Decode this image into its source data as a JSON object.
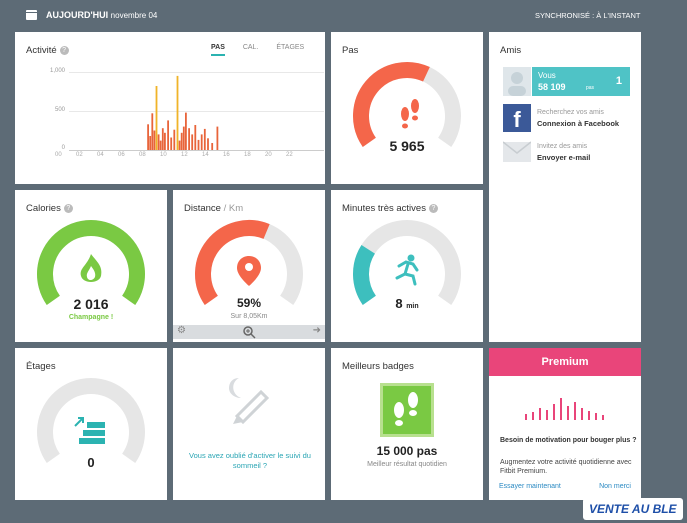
{
  "header": {
    "title": "AUJOURD'HUI",
    "date": "novembre 04",
    "sync": "SYNCHRONISÉ : À L'INSTANT"
  },
  "activity": {
    "title": "Activité",
    "tabs": [
      "PAS",
      "CAL.",
      "ÉTAGES"
    ],
    "active_tab": "PAS",
    "chart_data": {
      "type": "bar",
      "title": "",
      "ylim": [
        0,
        1000
      ],
      "yticks": [
        "1,000",
        "500",
        "0"
      ],
      "x_ticks": [
        "00",
        "02",
        "04",
        "06",
        "08",
        "10",
        "12",
        "14",
        "16",
        "18",
        "20",
        "22"
      ],
      "series": [
        {
          "values": [
            {
              "x": 8.4,
              "y": 330
            },
            {
              "x": 8.6,
              "y": 180
            },
            {
              "x": 8.8,
              "y": 470
            },
            {
              "x": 9.0,
              "y": 250
            },
            {
              "x": 9.2,
              "y": 820
            },
            {
              "x": 9.4,
              "y": 200
            },
            {
              "x": 9.6,
              "y": 120
            },
            {
              "x": 9.8,
              "y": 280
            },
            {
              "x": 10.0,
              "y": 220
            },
            {
              "x": 10.3,
              "y": 380
            },
            {
              "x": 10.6,
              "y": 160
            },
            {
              "x": 10.9,
              "y": 260
            },
            {
              "x": 11.2,
              "y": 950
            },
            {
              "x": 11.4,
              "y": 120
            },
            {
              "x": 11.6,
              "y": 220
            },
            {
              "x": 11.8,
              "y": 300
            },
            {
              "x": 12.0,
              "y": 480
            },
            {
              "x": 12.3,
              "y": 280
            },
            {
              "x": 12.6,
              "y": 200
            },
            {
              "x": 12.9,
              "y": 320
            },
            {
              "x": 13.2,
              "y": 130
            },
            {
              "x": 13.5,
              "y": 200
            },
            {
              "x": 13.8,
              "y": 270
            },
            {
              "x": 14.1,
              "y": 150
            },
            {
              "x": 14.5,
              "y": 90
            },
            {
              "x": 15.0,
              "y": 300
            }
          ]
        }
      ],
      "colors": {
        "orange": "#e8643a",
        "yellow": "#f0b429"
      }
    }
  },
  "pas": {
    "title": "Pas",
    "value": "5 965",
    "progress": 0.6,
    "color": "#f4664a"
  },
  "friends": {
    "title": "Amis",
    "me_label": "Vous",
    "me_value": "58 109",
    "me_sub": "pas",
    "rank": "1",
    "fb_line1": "Recherchez vos amis",
    "fb_line2": "Connexion à Facebook",
    "mail_line1": "Invitez des amis",
    "mail_line2": "Envoyer e-mail"
  },
  "calories": {
    "title": "Calories",
    "value": "2 016",
    "sub": "Champagne !",
    "progress": 1.0,
    "color": "#7ac943"
  },
  "distance": {
    "title": "Distance",
    "unit": " / Km",
    "value": "59%",
    "sub": "Sur 8,05Km",
    "progress": 0.59,
    "color": "#f4664a"
  },
  "minutes": {
    "title": "Minutes très actives",
    "value": "8",
    "unit": "min",
    "progress": 0.27,
    "color": "#3dbfbe"
  },
  "etages": {
    "title": "Étages",
    "value": "0",
    "progress": 0.0,
    "color": "#2bb3b1"
  },
  "sleep": {
    "text": "Vous avez oublié d'activer le suivi du sommeil ?"
  },
  "badges": {
    "title": "Meilleurs badges",
    "value": "15 000 pas",
    "sub": "Meilleur résultat quotidien"
  },
  "premium": {
    "title": "Premium",
    "question": "Besoin de motivation pour bouger plus ?",
    "text": "Augmentez votre activité quotidienne avec Fitbit Premium.",
    "try": "Essayer maintenant",
    "no": "Non merci"
  },
  "logo": {
    "text": "VENTE AU BLE"
  }
}
